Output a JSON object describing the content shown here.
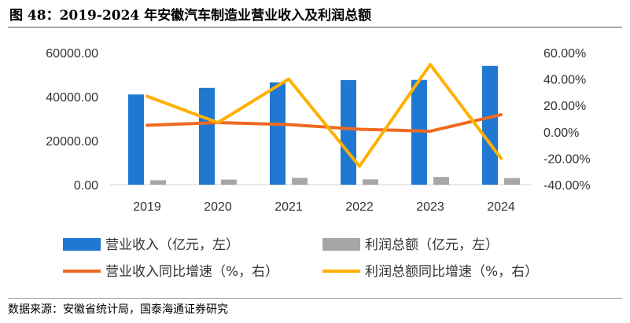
{
  "figure": {
    "title": "图 48：2019-2024 年安徽汽车制造业营业收入及利润总额",
    "source": "数据来源：安徽省统计局，国泰海通证券研究"
  },
  "colors": {
    "revenue": "#1F78D1",
    "profit": "#A6A6A6",
    "revenue_yoy": "#EF6A21",
    "profit_yoy": "#FFB000"
  },
  "chart_data": {
    "type": "bar",
    "categories": [
      "2019",
      "2020",
      "2021",
      "2022",
      "2023",
      "2024"
    ],
    "series": [
      {
        "name": "营业收入（亿元，左）",
        "type": "bar",
        "axis": "left",
        "values": [
          41000,
          44000,
          46500,
          47500,
          47600,
          54000
        ]
      },
      {
        "name": "利润总额（亿元，左）",
        "type": "bar",
        "axis": "left",
        "values": [
          2000,
          2300,
          3100,
          2400,
          3500,
          3000
        ]
      },
      {
        "name": "营业收入同比增速（%，右）",
        "type": "line",
        "axis": "right",
        "values": [
          5.0,
          7.0,
          5.5,
          2.0,
          0.5,
          13.0
        ]
      },
      {
        "name": "利润总额同比增速（%，右）",
        "type": "line",
        "axis": "right",
        "values": [
          27.0,
          7.0,
          40.0,
          -26.0,
          51.0,
          -20.0
        ]
      }
    ],
    "y_left": {
      "min": 0,
      "max": 60000,
      "ticks": [
        "0.00",
        "20000.00",
        "40000.00",
        "60000.00"
      ]
    },
    "y_right": {
      "min": -40,
      "max": 60,
      "ticks": [
        "-40.00%",
        "-20.00%",
        "0.00%",
        "20.00%",
        "40.00%",
        "60.00%"
      ]
    },
    "grid": false,
    "legend_position": "bottom"
  }
}
